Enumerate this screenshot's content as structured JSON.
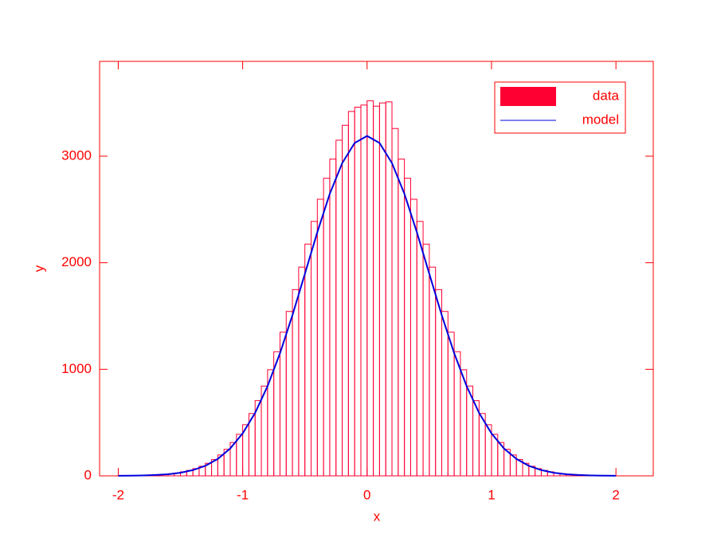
{
  "chart_data": {
    "type": "histogram",
    "x_label": "x",
    "y_label": "y",
    "xlim": [
      -2.15,
      2.3
    ],
    "ylim": [
      0,
      3890
    ],
    "xticks": [
      -2,
      -1,
      0,
      1,
      2
    ],
    "yticks": [
      0,
      1000,
      2000,
      3000
    ],
    "axis_color": "#ff0000",
    "legend": "upper right",
    "bins": [
      -2,
      -1.95,
      -1.9,
      -1.85,
      -1.8,
      -1.75,
      -1.7,
      -1.65,
      -1.6,
      -1.55,
      -1.5,
      -1.45,
      -1.4,
      -1.35,
      -1.3,
      -1.25,
      -1.2,
      -1.15,
      -1.1,
      -1.05,
      -1,
      -0.95,
      -0.9,
      -0.85,
      -0.8,
      -0.75,
      -0.7,
      -0.65,
      -0.6,
      -0.55,
      -0.5,
      -0.45,
      -0.4,
      -0.35,
      -0.3,
      -0.25,
      -0.2,
      -0.15,
      -0.1,
      -0.05,
      0,
      0.05,
      0.1,
      0.15,
      0.2,
      0.25,
      0.3,
      0.35,
      0.4,
      0.45,
      0.5,
      0.55,
      0.6,
      0.65,
      0.7,
      0.75,
      0.8,
      0.85,
      0.9,
      0.95,
      1,
      1.05,
      1.1,
      1.15,
      1.2,
      1.25,
      1.3,
      1.35,
      1.4,
      1.45,
      1.5,
      1.55,
      1.6,
      1.65,
      1.7,
      1.75,
      1.8,
      1.85,
      1.9,
      1.95,
      2
    ],
    "series": [
      {
        "name": "data",
        "type": "histogram",
        "color": "#ff0033",
        "values": [
          1,
          2,
          2,
          3,
          5,
          7,
          10,
          14,
          20,
          27,
          38,
          51,
          68,
          90,
          118,
          153,
          196,
          249,
          313,
          390,
          480,
          585,
          706,
          843,
          996,
          1165,
          1348,
          1543,
          1748,
          1959,
          2175,
          2388,
          2596,
          2793,
          2973,
          3150,
          3290,
          3420,
          3460,
          3480,
          3520,
          3470,
          3500,
          3510,
          3260,
          2973,
          2793,
          2596,
          2388,
          2175,
          1959,
          1748,
          1543,
          1348,
          1165,
          996,
          843,
          706,
          585,
          480,
          390,
          313,
          249,
          196,
          153,
          118,
          90,
          68,
          51,
          38,
          27,
          20,
          14,
          10,
          7,
          5,
          3,
          2,
          2,
          1
        ]
      },
      {
        "name": "model",
        "type": "line",
        "color": "#0000dd",
        "x": [
          -2,
          -1.9,
          -1.8,
          -1.7,
          -1.6,
          -1.5,
          -1.4,
          -1.3,
          -1.2,
          -1.1,
          -1,
          -0.9,
          -0.8,
          -0.7,
          -0.6,
          -0.5,
          -0.4,
          -0.3,
          -0.2,
          -0.1,
          0,
          0.1,
          0.2,
          0.3,
          0.4,
          0.5,
          0.6,
          0.7,
          0.8,
          0.9,
          1,
          1.1,
          1.2,
          1.3,
          1.4,
          1.5,
          1.6,
          1.7,
          1.8,
          1.9,
          2
        ],
        "values": [
          1,
          2,
          4,
          8,
          15,
          29,
          54,
          94,
          159,
          257,
          398,
          591,
          842,
          1151,
          1508,
          1896,
          2287,
          2647,
          2935,
          3124,
          3190,
          3124,
          2935,
          2647,
          2287,
          1896,
          1508,
          1151,
          842,
          591,
          398,
          257,
          159,
          94,
          54,
          29,
          15,
          8,
          4,
          2,
          1
        ]
      }
    ]
  }
}
